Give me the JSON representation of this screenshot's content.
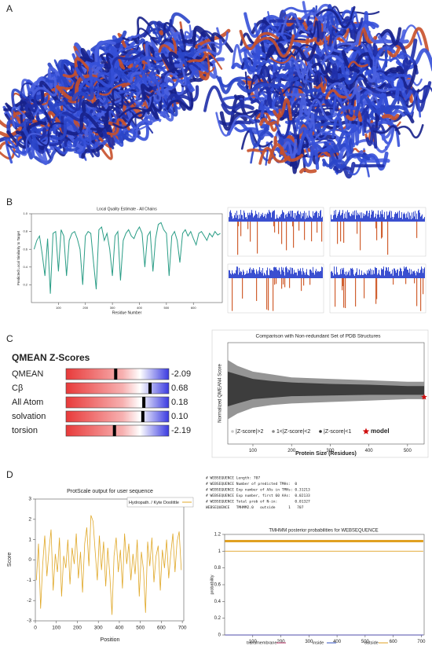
{
  "panel_labels": [
    "A",
    "B",
    "C",
    "D"
  ],
  "local_quality": {
    "type": "line",
    "title": "Local Quality Estimate - All Chains",
    "xlabel": "Residue Number",
    "ylabel": "Predicted Local Similarity to Target",
    "color": "#2a9d86",
    "xlim": [
      0,
      707
    ],
    "ylim": [
      0,
      1.0
    ],
    "xticks": [
      100,
      200,
      300,
      400,
      500,
      600
    ],
    "yticks": [
      0.2,
      0.4,
      0.6,
      0.8,
      {
        "value": 1.0,
        "label": "1.0"
      }
    ],
    "x": [
      10,
      20,
      30,
      40,
      50,
      60,
      70,
      80,
      90,
      100,
      110,
      120,
      130,
      140,
      150,
      160,
      170,
      180,
      190,
      200,
      210,
      220,
      230,
      240,
      250,
      260,
      270,
      280,
      290,
      300,
      310,
      320,
      330,
      340,
      350,
      360,
      370,
      380,
      390,
      400,
      410,
      420,
      430,
      440,
      450,
      460,
      470,
      480,
      490,
      500,
      510,
      520,
      530,
      540,
      550,
      560,
      570,
      580,
      590,
      600,
      610,
      620,
      630,
      640,
      650,
      660,
      670,
      680,
      690,
      700
    ],
    "values": [
      0.6,
      0.7,
      0.75,
      0.55,
      0.3,
      0.72,
      0.1,
      0.78,
      0.8,
      0.35,
      0.82,
      0.75,
      0.3,
      0.7,
      0.78,
      0.8,
      0.72,
      0.6,
      0.2,
      0.75,
      0.8,
      0.78,
      0.45,
      0.15,
      0.82,
      0.85,
      0.7,
      0.78,
      0.6,
      0.3,
      0.75,
      0.8,
      0.25,
      0.7,
      0.78,
      0.82,
      0.75,
      0.72,
      0.8,
      0.85,
      0.78,
      0.4,
      0.75,
      0.8,
      0.35,
      0.72,
      0.88,
      0.9,
      0.82,
      0.78,
      0.3,
      0.75,
      0.8,
      0.7,
      0.45,
      0.78,
      0.82,
      0.75,
      0.8,
      0.72,
      0.65,
      0.78,
      0.8,
      0.75,
      0.7,
      0.78,
      0.74,
      0.8,
      0.76,
      0.78
    ]
  },
  "qmean": {
    "type": "zscore",
    "title": "QMEAN Z-Scores",
    "labels": [
      "QMEAN",
      "Cβ",
      "All Atom",
      "solvation",
      "torsion"
    ],
    "values": [
      -2.09,
      0.68,
      0.18,
      0.1,
      -2.19
    ],
    "value_labels": [
      "-2.09",
      "0.68",
      "0.18",
      "0.10",
      "-2.19"
    ],
    "zlim": [
      -6.1,
      2.2
    ]
  },
  "comparison": {
    "type": "scatter",
    "title": "Comparison with Non-redundant Set of PDB Structures",
    "xlabel": "Protein Size (Residues)",
    "ylabel": "Normalized QMEAN4 Score",
    "xlim": [
      35,
      543
    ],
    "ylim": [
      -4,
      3
    ],
    "xticks": [
      100,
      200,
      300,
      400,
      500
    ],
    "cloud_outer": {
      "x": [
        35,
        60,
        100,
        150,
        200,
        300,
        400,
        500,
        543
      ],
      "upper": [
        1.8,
        1.4,
        1.0,
        0.8,
        0.6,
        0.5,
        0.4,
        0.3,
        0.3
      ],
      "lower": [
        -2.3,
        -1.9,
        -1.5,
        -1.3,
        -1.2,
        -1.1,
        -1.0,
        -0.9,
        -0.9
      ]
    },
    "cloud_inner": {
      "x": [
        35,
        60,
        100,
        150,
        200,
        300,
        400,
        500,
        543
      ],
      "upper": [
        1.0,
        0.8,
        0.5,
        0.35,
        0.25,
        0.15,
        0.1,
        0.0,
        0.0
      ],
      "lower": [
        -1.4,
        -1.2,
        -0.9,
        -0.8,
        -0.7,
        -0.65,
        -0.6,
        -0.6,
        -0.6
      ]
    },
    "model": {
      "x": 543,
      "y": -0.76
    },
    "legend": [
      "|Z-score|>2",
      "1<|Z-score|<2",
      "|Z-score|<1",
      "model"
    ],
    "legend_colors": [
      "#c8c8c8",
      "#8a8a8a",
      "#333333",
      "#d01010"
    ]
  },
  "protscale": {
    "type": "line",
    "title": "ProtScale output for user sequence",
    "legend": "Hydropath. / Kyte Doolittle",
    "xlabel": "Position",
    "ylabel": "Score",
    "color": "#e0a828",
    "xlim": [
      0,
      707
    ],
    "ylim": [
      -3,
      3
    ],
    "xticks": [
      0,
      100,
      200,
      300,
      400,
      500,
      600,
      700
    ],
    "yticks": [
      -3,
      -2,
      -1,
      0,
      1,
      2,
      3
    ],
    "x": [
      5,
      15,
      25,
      35,
      45,
      55,
      65,
      75,
      85,
      95,
      105,
      115,
      125,
      135,
      145,
      155,
      165,
      175,
      185,
      195,
      205,
      215,
      225,
      235,
      245,
      255,
      265,
      275,
      285,
      295,
      305,
      315,
      325,
      335,
      345,
      355,
      365,
      375,
      385,
      395,
      405,
      415,
      425,
      435,
      445,
      455,
      465,
      475,
      485,
      495,
      505,
      515,
      525,
      535,
      545,
      555,
      565,
      575,
      585,
      595,
      605,
      615,
      625,
      635,
      645,
      655,
      665,
      675,
      685,
      695
    ],
    "values": [
      -1.0,
      0.8,
      -2.4,
      -0.2,
      1.2,
      -0.8,
      0.5,
      1.5,
      -1.5,
      0.3,
      -0.6,
      1.1,
      -1.8,
      0.2,
      -0.4,
      1.0,
      -1.2,
      0.6,
      -0.2,
      1.3,
      -0.9,
      0.4,
      -1.6,
      0.8,
      1.6,
      -0.3,
      2.2,
      1.9,
      0.4,
      -1.0,
      1.2,
      -0.5,
      0.9,
      -1.3,
      0.6,
      -0.8,
      -2.7,
      0.2,
      1.1,
      -0.6,
      0.5,
      -1.4,
      1.3,
      -0.2,
      0.8,
      -1.0,
      0.3,
      -0.7,
      1.0,
      -1.8,
      0.4,
      -0.5,
      -2.6,
      0.9,
      -0.3,
      1.1,
      -1.1,
      0.2,
      0.7,
      -1.5,
      0.5,
      -0.4,
      1.0,
      -0.9,
      0.3,
      1.3,
      -0.6,
      0.9,
      1.4,
      -0.5
    ]
  },
  "tmhmm": {
    "type": "line",
    "summary": [
      "# WEBSEQUENCE Length: 707",
      "# WEBSEQUENCE Number of predicted TMHs:  0",
      "# WEBSEQUENCE Exp number of AAs in TMHs: 0.31213",
      "# WEBSEQUENCE Exp number, first 60 AAs:  0.02133",
      "# WEBSEQUENCE Total prob of N-in:        0.01327",
      "WEBSEQUENCE   TMHMM2.0   outside      1   707"
    ],
    "title": "TMHMM posterior probabilities for WEBSEQUENCE",
    "ylabel": "probability",
    "xlim": [
      0,
      710
    ],
    "ylim": [
      0,
      1.2
    ],
    "xticks": [
      100,
      200,
      300,
      400,
      500,
      600,
      700
    ],
    "yticks": [
      0,
      0.2,
      0.4,
      0.6,
      0.8,
      1,
      1.2
    ],
    "x": [
      1,
      707
    ],
    "series": [
      {
        "name": "transmembrane",
        "color": "#b03060",
        "values": [
          0,
          0
        ]
      },
      {
        "name": "inside",
        "color": "#3050c0",
        "values": [
          0,
          0
        ]
      },
      {
        "name": "outside",
        "color": "#e0a020",
        "values": [
          1,
          1
        ]
      }
    ],
    "outside_band": {
      "start": 1,
      "end": 707,
      "value": 1.12
    }
  }
}
